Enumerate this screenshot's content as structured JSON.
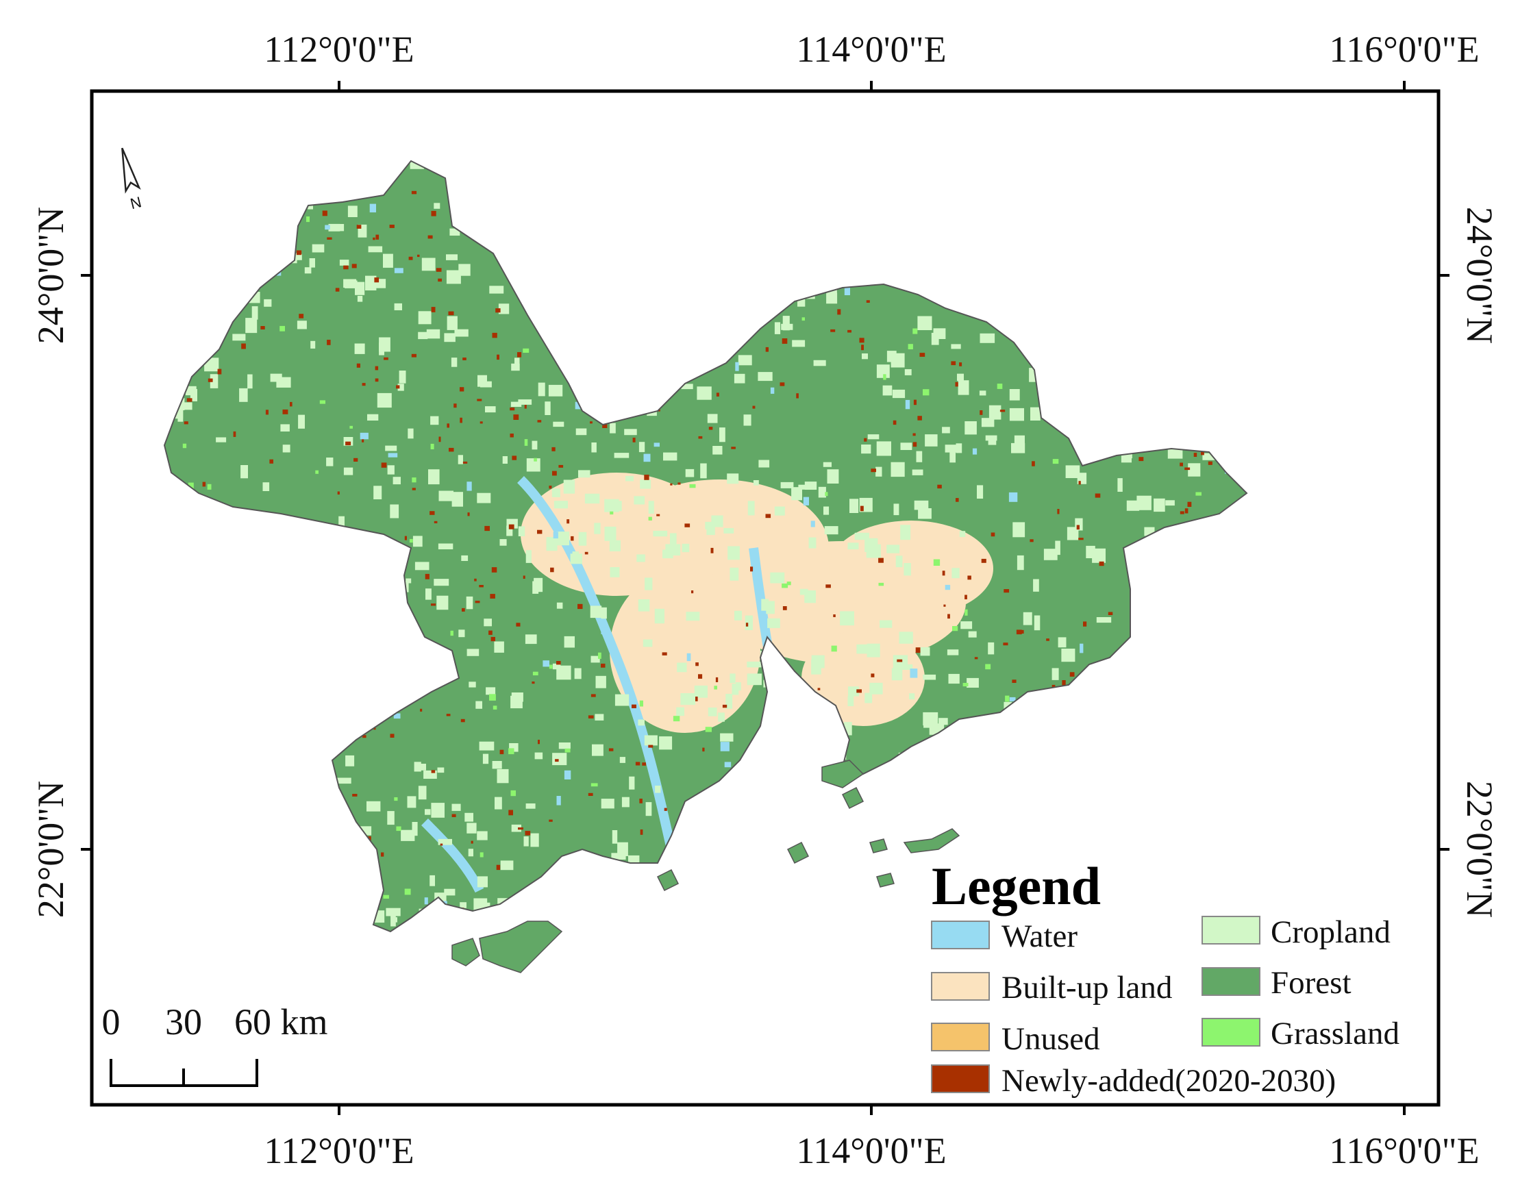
{
  "map": {
    "top_lon_labels": [
      "112°0'0\"E",
      "114°0'0\"E",
      "116°0'0\"E"
    ],
    "bottom_lon_labels": [
      "112°0'0\"E",
      "114°0'0\"E",
      "116°0'0\"E"
    ],
    "left_lat_labels": [
      "24°0'0\"N",
      "22°0'0\"N"
    ],
    "right_lat_labels": [
      "24°0'0\"N",
      "22°0'0\"N"
    ],
    "north_arrow_label": "N",
    "scale_bar": {
      "labels": [
        "0",
        "30",
        "60 km"
      ]
    },
    "legend": {
      "title": "Legend",
      "items": [
        {
          "label": "Water",
          "color": "#97dbf2"
        },
        {
          "label": "Cropland",
          "color": "#d2f7c7"
        },
        {
          "label": "Built-up land",
          "color": "#fbe3bf"
        },
        {
          "label": "Forest",
          "color": "#62a866"
        },
        {
          "label": "Unused",
          "color": "#f5c36b"
        },
        {
          "label": "Grassland",
          "color": "#8df56e"
        },
        {
          "label": "Newly-added(2020-2030)",
          "color": "#a83000"
        }
      ]
    }
  }
}
